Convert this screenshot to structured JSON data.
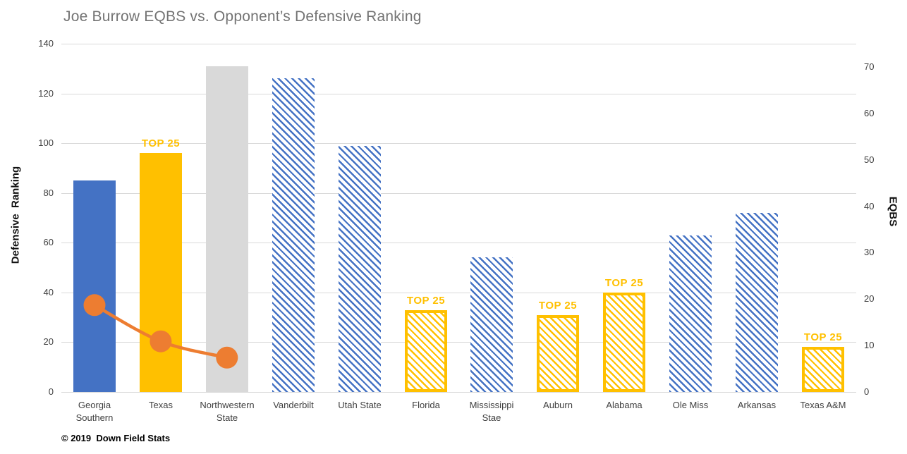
{
  "footer": {
    "copyright": "© 2019  Down Field Stats"
  },
  "chart_data": {
    "type": "bar",
    "title": "Joe Burrow EQBS vs. Opponent’s Defensive Ranking",
    "legend": "none",
    "grid": "horizontal",
    "left_axis": {
      "label": "Defensive  Ranking",
      "min": 0,
      "max": 140,
      "step": 20,
      "ticks": [
        0,
        20,
        40,
        60,
        80,
        100,
        120,
        140
      ]
    },
    "right_axis": {
      "label": "EQBS",
      "min": 0,
      "max": 75,
      "step": 10,
      "ticks": [
        0,
        10,
        20,
        30,
        40,
        50,
        60,
        70
      ]
    },
    "categories": [
      "Georgia Southern",
      "Texas",
      "Northwestern State",
      "Vanderbilt",
      "Utah State",
      "Florida",
      "Mississippi Stae",
      "Auburn",
      "Alabama",
      "Ole Miss",
      "Arkansas",
      "Texas A&M"
    ],
    "category_lines": [
      [
        "Georgia",
        "Southern"
      ],
      [
        "Texas"
      ],
      [
        "Northwestern",
        "State"
      ],
      [
        "Vanderbilt"
      ],
      [
        "Utah State"
      ],
      [
        "Florida"
      ],
      [
        "Mississippi",
        "Stae"
      ],
      [
        "Auburn"
      ],
      [
        "Alabama"
      ],
      [
        "Ole Miss"
      ],
      [
        "Arkansas"
      ],
      [
        "Texas A&M"
      ]
    ],
    "series": [
      {
        "name": "Opponent Defensive Ranking",
        "type": "bar",
        "axis": "left",
        "values": [
          85,
          96,
          131,
          126,
          99,
          33,
          54,
          31,
          40,
          63,
          72,
          18
        ],
        "styles": [
          "solid-blue",
          "solid-gold",
          "solid-gray",
          "hatch-blue",
          "hatch-blue",
          "hatch-gold",
          "hatch-blue",
          "hatch-gold",
          "hatch-gold",
          "hatch-blue",
          "hatch-blue",
          "hatch-gold"
        ],
        "top25_flags": [
          false,
          true,
          false,
          false,
          false,
          true,
          false,
          true,
          true,
          false,
          false,
          true
        ],
        "top25_label": "TOP 25"
      },
      {
        "name": "Joe Burrow EQBS",
        "type": "line",
        "axis": "right",
        "x_indices": [
          0,
          1,
          2
        ],
        "values": [
          18.7,
          10.9,
          7.4
        ]
      }
    ],
    "colors": {
      "blue": "#4472C4",
      "gold": "#FFC000",
      "gray": "#D9D9D9",
      "orange": "#ED7D31",
      "gridline": "#D9D9D9",
      "title_text": "#737373",
      "tick_text": "#404040"
    }
  }
}
